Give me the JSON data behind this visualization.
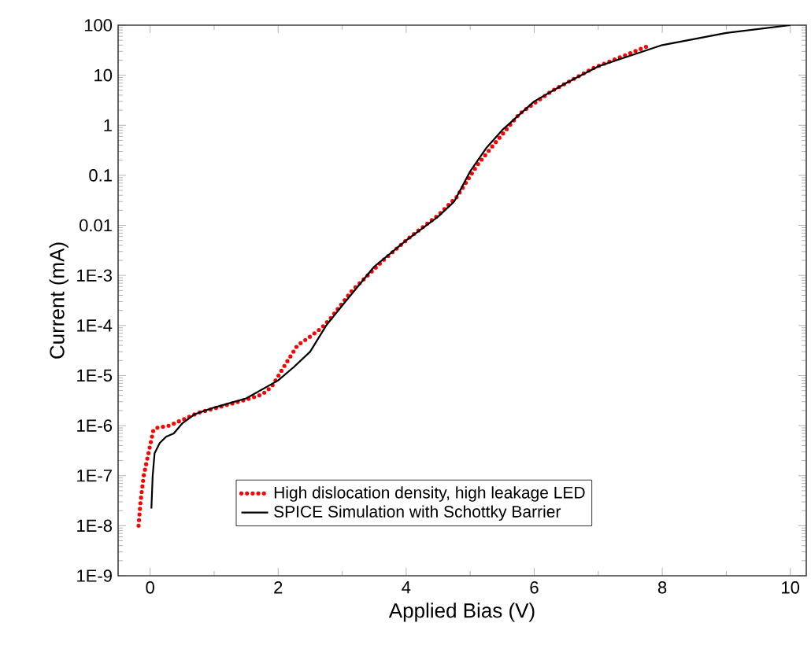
{
  "chart_data": {
    "type": "line",
    "xlabel": "Applied Bias (V)",
    "ylabel": "Current (mA)",
    "log": "y",
    "xlim": [
      -0.5,
      10.25
    ],
    "ylim": [
      1e-09,
      100
    ],
    "xticks": [
      0,
      2,
      4,
      6,
      8,
      10
    ],
    "yticks": [
      {
        "value": 1e-09,
        "label": "1E-9"
      },
      {
        "value": 1e-08,
        "label": "1E-8"
      },
      {
        "value": 1e-07,
        "label": "1E-7"
      },
      {
        "value": 1e-06,
        "label": "1E-6"
      },
      {
        "value": 1e-05,
        "label": "1E-5"
      },
      {
        "value": 0.0001,
        "label": "1E-4"
      },
      {
        "value": 0.001,
        "label": "1E-3"
      },
      0.01,
      0.1,
      1,
      10,
      100
    ],
    "legend": "bottom",
    "grid": false,
    "marker": "none",
    "series": [
      {
        "name": "High dislocation density, high leakage LED",
        "color": "#ff0000",
        "line_style": "dotted",
        "x": [
          -0.18,
          -0.15,
          -0.1,
          -0.05,
          0,
          0.05,
          0.1,
          0.3,
          0.5,
          0.75,
          1,
          1.25,
          1.5,
          1.75,
          1.9,
          2.09,
          2.3,
          2.5,
          2.68,
          2.8,
          3.15,
          3.64,
          4.05,
          4.5,
          4.79,
          5.11,
          5.36,
          5.77,
          6.27,
          6.93,
          7.79
        ],
        "values": [
          1e-08,
          3e-08,
          1e-07,
          2e-07,
          4e-07,
          8e-07,
          9e-07,
          1e-06,
          1.3e-06,
          1.8e-06,
          2.2e-06,
          2.7e-06,
          3.3e-06,
          4.2e-06,
          6e-06,
          1.5e-05,
          4e-05,
          6e-05,
          9e-05,
          0.00013,
          0.00049,
          0.002,
          0.0057,
          0.016,
          0.037,
          0.16,
          0.4,
          1.7,
          4.8,
          14,
          39
        ]
      },
      {
        "name": "SPICE Simulation with Schottky Barrier",
        "color": "#000000",
        "line_style": "solid",
        "x": [
          0.02,
          0.04,
          0.07,
          0.15,
          0.25,
          0.37,
          0.5,
          0.7,
          1,
          1.5,
          2,
          2.25,
          2.5,
          2.75,
          3,
          3.5,
          4,
          4.5,
          4.75,
          5,
          5.25,
          5.5,
          6,
          6.5,
          7,
          8,
          9,
          10
        ],
        "values": [
          2.2e-08,
          1e-07,
          2.8e-07,
          4.5e-07,
          6e-07,
          7e-07,
          1.1e-06,
          1.7e-06,
          2.3e-06,
          3.5e-06,
          8e-06,
          1.5e-05,
          3e-05,
          0.0001,
          0.00025,
          0.0015,
          0.005,
          0.015,
          0.03,
          0.12,
          0.35,
          0.8,
          3,
          7,
          15,
          40,
          70,
          100
        ]
      }
    ]
  }
}
